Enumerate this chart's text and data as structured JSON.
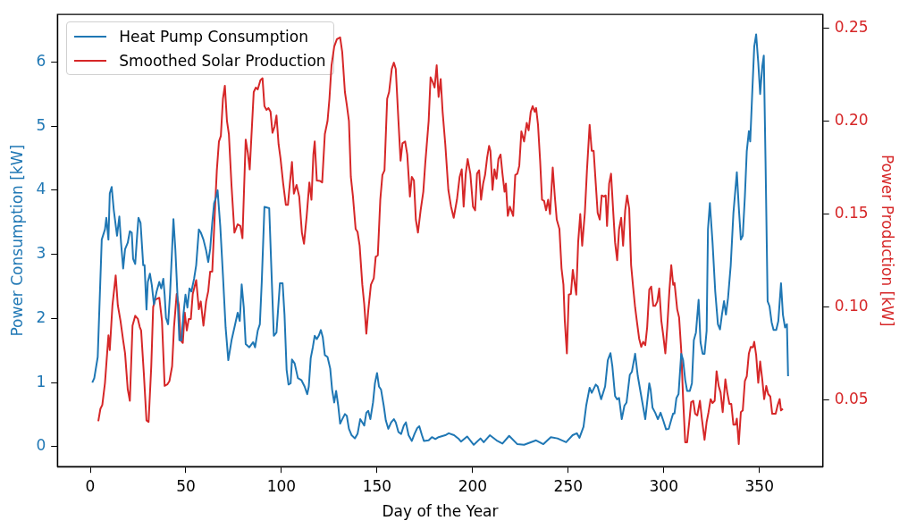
{
  "chart_data": {
    "type": "line",
    "xlabel": "Day of the Year",
    "ylabel": "Power Consumption [kW]",
    "y2label": "Power Production [kW]",
    "xlim": [
      -17.2,
      383.2
    ],
    "xticks": [
      0,
      50,
      100,
      150,
      200,
      250,
      300,
      350
    ],
    "ylim": [
      -0.31,
      6.74
    ],
    "yticks": [
      0,
      1,
      2,
      3,
      4,
      5,
      6
    ],
    "y2lim": [
      0.0142,
      0.2573
    ],
    "y2ticks": [
      0.05,
      {
        "value": 0.1,
        "label": "0.10"
      },
      0.15,
      {
        "value": 0.2,
        "label": "0.20"
      },
      0.25
    ],
    "grid": false,
    "legend": "top left",
    "series": [
      {
        "name": "Heat Pump Consumption",
        "color": "#1f77b4",
        "x": [
          1.05,
          2.1,
          3.9,
          6.0,
          7.7,
          8.4,
          9.5,
          10.2,
          11.2,
          12.3,
          14.0,
          15.2,
          16.1,
          17.2,
          18.2,
          19.6,
          20.7,
          21.7,
          22.4,
          23.5,
          24.5,
          25.2,
          26.3,
          27.7,
          28.4,
          29.4,
          30.1,
          31.2,
          32.2,
          33.3,
          34.7,
          36.1,
          37.1,
          38.2,
          38.9,
          39.6,
          40.7,
          41.7,
          42.8,
          43.5,
          44.5,
          45.6,
          46.6,
          47.7,
          48.7,
          49.8,
          50.8,
          51.9,
          52.9,
          54.3,
          55.4,
          56.8,
          57.8,
          59.2,
          60.6,
          61.7,
          62.7,
          63.8,
          64.8,
          65.9,
          66.6,
          68.0,
          69.4,
          70.8,
          72.2,
          73.9,
          75.4,
          77.1,
          78.2,
          79.2,
          80.3,
          81.3,
          83.2,
          85.2,
          86.2,
          87.6,
          88.7,
          89.7,
          91.1,
          93.6,
          94.6,
          96.0,
          97.4,
          99.2,
          100.6,
          101.6,
          102.7,
          103.7,
          104.8,
          105.5,
          106.9,
          108.6,
          110.4,
          112.1,
          113.5,
          114.3,
          115.3,
          116.4,
          117.4,
          118.5,
          119.5,
          120.6,
          121.6,
          122.7,
          124.1,
          125.5,
          126.5,
          127.6,
          128.6,
          129.7,
          130.7,
          131.8,
          133.2,
          134.2,
          135.3,
          136.7,
          138.4,
          139.8,
          141.2,
          142.3,
          143.3,
          144.4,
          145.4,
          146.5,
          147.9,
          148.9,
          150.0,
          151.0,
          152.1,
          153.5,
          154.6,
          155.9,
          157.4,
          158.8,
          159.8,
          161.2,
          162.6,
          164.0,
          165.1,
          166.5,
          168.2,
          169.6,
          171.0,
          172.1,
          173.5,
          174.5,
          177.0,
          178.7,
          180.5,
          182.2,
          185.7,
          187.5,
          190.3,
          192.8,
          193.9,
          197.1,
          200.6,
          204.1,
          205.8,
          209.0,
          212.5,
          215.6,
          219.1,
          223.4,
          226.9,
          233.2,
          237.0,
          240.9,
          244.4,
          248.9,
          252.3,
          254.5,
          255.9,
          258.0,
          259.4,
          261.2,
          262.3,
          264.4,
          265.4,
          267.2,
          269.3,
          270.7,
          272.1,
          273.1,
          274.5,
          275.6,
          276.6,
          278.0,
          279.4,
          280.5,
          282.2,
          283.3,
          285.0,
          286.4,
          288.2,
          290.3,
          292.4,
          293.1,
          294.1,
          295.5,
          296.9,
          298.3,
          299.7,
          301.2,
          302.6,
          304.0,
          304.9,
          305.6,
          306.6,
          307.7,
          309.1,
          310.1,
          311.2,
          312.2,
          313.6,
          314.7,
          315.7,
          316.8,
          318.2,
          319.2,
          320.3,
          321.3,
          322.4,
          323.1,
          324.1,
          325.5,
          326.9,
          328.3,
          329.4,
          330.4,
          331.5,
          332.5,
          333.6,
          335.0,
          336.4,
          338.2,
          339.2,
          340.3,
          341.3,
          342.4,
          343.4,
          344.5,
          345.2,
          346.2,
          347.3,
          348.3,
          349.4,
          350.4,
          351.5,
          352.3,
          353.2,
          354.3,
          355.3,
          356.4,
          357.4,
          358.8,
          359.9,
          361.3,
          362.3,
          363.4,
          364.4,
          365
        ],
        "values": [
          1.0,
          1.07,
          1.4,
          3.23,
          3.39,
          3.57,
          3.23,
          3.95,
          4.05,
          3.69,
          3.29,
          3.59,
          3.18,
          2.78,
          3.08,
          3.18,
          3.36,
          3.34,
          2.93,
          2.85,
          3.29,
          3.57,
          3.49,
          2.83,
          2.83,
          2.14,
          2.57,
          2.7,
          2.52,
          2.22,
          2.42,
          2.57,
          2.47,
          2.62,
          2.37,
          2.01,
          1.91,
          2.37,
          3.08,
          3.55,
          3.08,
          2.37,
          1.66,
          1.66,
          2.06,
          2.37,
          2.17,
          2.47,
          2.42,
          2.62,
          2.83,
          3.39,
          3.34,
          3.23,
          3.06,
          2.88,
          3.08,
          3.49,
          3.8,
          3.9,
          4.0,
          3.44,
          2.67,
          1.86,
          1.35,
          1.66,
          1.86,
          2.09,
          1.96,
          2.53,
          2.17,
          1.6,
          1.55,
          1.63,
          1.55,
          1.81,
          1.91,
          2.57,
          3.74,
          3.72,
          2.88,
          1.73,
          1.78,
          2.55,
          2.55,
          2.06,
          1.2,
          0.97,
          0.99,
          1.36,
          1.3,
          1.07,
          1.04,
          0.94,
          0.82,
          0.94,
          1.38,
          1.55,
          1.73,
          1.68,
          1.73,
          1.82,
          1.71,
          1.43,
          1.4,
          1.22,
          0.89,
          0.69,
          0.87,
          0.64,
          0.36,
          0.43,
          0.51,
          0.48,
          0.28,
          0.18,
          0.13,
          0.2,
          0.43,
          0.38,
          0.33,
          0.53,
          0.56,
          0.43,
          0.69,
          0.99,
          1.15,
          0.94,
          0.89,
          0.64,
          0.41,
          0.28,
          0.38,
          0.43,
          0.38,
          0.23,
          0.2,
          0.33,
          0.38,
          0.18,
          0.09,
          0.2,
          0.29,
          0.32,
          0.18,
          0.09,
          0.1,
          0.15,
          0.12,
          0.15,
          0.18,
          0.21,
          0.18,
          0.12,
          0.08,
          0.16,
          0.03,
          0.13,
          0.07,
          0.18,
          0.1,
          0.05,
          0.17,
          0.04,
          0.03,
          0.1,
          0.04,
          0.15,
          0.13,
          0.07,
          0.18,
          0.21,
          0.14,
          0.31,
          0.64,
          0.92,
          0.84,
          0.97,
          0.94,
          0.74,
          0.94,
          1.35,
          1.46,
          1.25,
          0.79,
          0.74,
          0.76,
          0.43,
          0.64,
          0.69,
          1.12,
          1.17,
          1.45,
          1.1,
          0.79,
          0.43,
          0.99,
          0.89,
          0.61,
          0.53,
          0.43,
          0.53,
          0.41,
          0.27,
          0.28,
          0.43,
          0.52,
          0.52,
          0.76,
          0.82,
          1.45,
          1.35,
          1.04,
          0.87,
          0.87,
          0.99,
          1.66,
          1.78,
          2.29,
          1.63,
          1.45,
          1.45,
          1.81,
          3.39,
          3.8,
          3.18,
          2.42,
          1.91,
          1.83,
          2.06,
          2.27,
          2.06,
          2.32,
          2.83,
          3.64,
          4.28,
          3.74,
          3.23,
          3.29,
          3.9,
          4.61,
          4.92,
          4.76,
          5.48,
          6.24,
          6.43,
          5.99,
          5.5,
          5.93,
          6.1,
          4.46,
          2.27,
          2.19,
          1.94,
          1.82,
          1.82,
          1.96,
          2.55,
          2.06,
          1.86,
          1.91,
          1.1
        ]
      },
      {
        "name": "Smoothed Solar Production",
        "color": "#d62728",
        "axis": "y2",
        "x": [
          4.2,
          5.3,
          6.3,
          7.7,
          9.5,
          10.2,
          11.6,
          13.3,
          14.4,
          15.8,
          17.2,
          18.2,
          19.6,
          20.7,
          22.1,
          23.5,
          24.9,
          25.9,
          26.6,
          28.0,
          29.4,
          30.5,
          31.9,
          32.9,
          34.0,
          36.1,
          37.5,
          38.9,
          40.3,
          41.4,
          42.8,
          43.8,
          45.2,
          46.3,
          47.3,
          48.4,
          49.4,
          50.5,
          51.5,
          52.6,
          53.6,
          55.4,
          56.8,
          57.8,
          59.2,
          60.6,
          61.7,
          62.7,
          63.8,
          65.2,
          66.2,
          67.3,
          68.3,
          69.4,
          70.4,
          71.5,
          72.5,
          73.9,
          75.4,
          77.1,
          78.5,
          79.6,
          81.3,
          82.4,
          83.4,
          85.5,
          86.6,
          87.6,
          89.0,
          90.1,
          91.1,
          92.2,
          93.2,
          94.3,
          95.3,
          96.4,
          97.4,
          98.5,
          99.5,
          100.9,
          102.3,
          103.4,
          104.4,
          105.5,
          106.5,
          107.9,
          109.3,
          110.7,
          111.8,
          113.2,
          114.6,
          115.7,
          116.7,
          117.4,
          118.5,
          120.2,
          121.3,
          122.7,
          124.1,
          125.1,
          126.2,
          127.6,
          129.0,
          130.7,
          131.8,
          133.2,
          134.2,
          135.3,
          136.3,
          137.4,
          138.8,
          139.8,
          140.9,
          142.3,
          143.3,
          144.4,
          145.4,
          146.8,
          148.3,
          149.3,
          150.4,
          151.7,
          152.8,
          153.9,
          155.3,
          156.3,
          157.7,
          158.8,
          159.8,
          161.2,
          162.3,
          163.3,
          164.7,
          165.8,
          167.2,
          168.2,
          169.3,
          170.3,
          171.4,
          172.8,
          174.2,
          175.2,
          177.0,
          178.0,
          179.1,
          180.1,
          181.2,
          182.2,
          183.3,
          184.3,
          185.7,
          187.3,
          188.7,
          190.1,
          191.8,
          193.2,
          194.3,
          195.3,
          196.4,
          197.4,
          198.8,
          200.2,
          201.3,
          202.3,
          203.4,
          204.4,
          205.5,
          206.5,
          207.6,
          208.6,
          209.3,
          210.4,
          211.4,
          212.5,
          213.5,
          214.6,
          215.6,
          216.7,
          217.4,
          218.4,
          219.5,
          221.2,
          222.3,
          223.4,
          224.4,
          225.5,
          226.9,
          228.3,
          229.3,
          230.4,
          231.4,
          232.5,
          233.2,
          234.2,
          235.3,
          236.3,
          237.4,
          238.4,
          239.5,
          240.5,
          241.9,
          243.0,
          244.0,
          245.4,
          246.5,
          247.5,
          248.2,
          249.3,
          250.3,
          251.4,
          252.4,
          254.2,
          255.2,
          256.3,
          257.3,
          258.7,
          259.8,
          261.2,
          262.3,
          263.3,
          264.4,
          265.4,
          266.5,
          267.5,
          268.6,
          269.6,
          270.3,
          271.4,
          272.4,
          273.5,
          274.5,
          275.6,
          276.6,
          277.7,
          278.7,
          279.8,
          280.8,
          281.9,
          282.9,
          284.0,
          285.0,
          286.1,
          287.1,
          288.2,
          289.2,
          290.3,
          291.3,
          292.4,
          293.4,
          294.5,
          295.5,
          296.6,
          297.6,
          298.7,
          299.7,
          300.8,
          301.8,
          302.9,
          303.9,
          304.9,
          305.6,
          307.0,
          308.0,
          309.1,
          310.1,
          311.2,
          312.2,
          313.3,
          314.3,
          315.4,
          316.4,
          317.5,
          318.9,
          319.9,
          321.3,
          322.4,
          323.4,
          324.5,
          325.5,
          326.6,
          327.6,
          328.7,
          329.7,
          330.8,
          332.2,
          333.2,
          334.3,
          335.3,
          336.4,
          337.5,
          338.2,
          339.2,
          340.3,
          341.3,
          342.4,
          343.4,
          344.5,
          345.5,
          346.6,
          347.3,
          348.3,
          349.4,
          350.4,
          351.5,
          352.5,
          353.6,
          354.6,
          355.7,
          356.7,
          358.5,
          359.5,
          360.6,
          361.3,
          362.3
        ],
        "values": [
          0.0386,
          0.0453,
          0.0474,
          0.0593,
          0.0848,
          0.0769,
          0.101,
          0.117,
          0.101,
          0.0927,
          0.0821,
          0.0751,
          0.0558,
          0.0496,
          0.09,
          0.0953,
          0.0936,
          0.0892,
          0.0874,
          0.0646,
          0.0391,
          0.0382,
          0.0681,
          0.1,
          0.104,
          0.105,
          0.0927,
          0.0576,
          0.0584,
          0.0602,
          0.0681,
          0.0892,
          0.107,
          0.101,
          0.0821,
          0.0807,
          0.0971,
          0.0874,
          0.0936,
          0.0936,
          0.107,
          0.1145,
          0.0988,
          0.103,
          0.09,
          0.103,
          0.1085,
          0.119,
          0.119,
          0.152,
          0.1735,
          0.189,
          0.192,
          0.212,
          0.219,
          0.2,
          0.193,
          0.165,
          0.14,
          0.1445,
          0.1436,
          0.137,
          0.19,
          0.183,
          0.174,
          0.2156,
          0.218,
          0.217,
          0.222,
          0.223,
          0.208,
          0.206,
          0.207,
          0.205,
          0.1937,
          0.197,
          0.203,
          0.1875,
          0.18,
          0.1664,
          0.155,
          0.155,
          0.1664,
          0.178,
          0.161,
          0.1656,
          0.1594,
          0.14,
          0.134,
          0.149,
          0.167,
          0.1577,
          0.182,
          0.189,
          0.168,
          0.1678,
          0.167,
          0.193,
          0.2,
          0.212,
          0.23,
          0.24,
          0.244,
          0.245,
          0.237,
          0.2156,
          0.2086,
          0.2,
          0.17,
          0.1594,
          0.142,
          0.1404,
          0.133,
          0.112,
          0.1015,
          0.0857,
          0.098,
          0.112,
          0.1155,
          0.127,
          0.1278,
          0.1577,
          0.171,
          0.1735,
          0.212,
          0.2156,
          0.228,
          0.2314,
          0.228,
          0.2,
          0.1787,
          0.188,
          0.189,
          0.182,
          0.1594,
          0.17,
          0.168,
          0.147,
          0.14,
          0.152,
          0.162,
          0.177,
          0.2,
          0.2235,
          0.221,
          0.218,
          0.23,
          0.213,
          0.2226,
          0.205,
          0.1875,
          0.163,
          0.154,
          0.148,
          0.1577,
          0.17,
          0.174,
          0.154,
          0.1717,
          0.1796,
          0.1717,
          0.154,
          0.152,
          0.1717,
          0.1735,
          0.1577,
          0.1664,
          0.171,
          0.1805,
          0.1866,
          0.184,
          0.163,
          0.174,
          0.169,
          0.1796,
          0.182,
          0.1717,
          0.162,
          0.1664,
          0.149,
          0.154,
          0.149,
          0.171,
          0.1717,
          0.176,
          0.1945,
          0.189,
          0.199,
          0.195,
          0.205,
          0.208,
          0.205,
          0.207,
          0.198,
          0.1787,
          0.1577,
          0.157,
          0.152,
          0.1577,
          0.15,
          0.175,
          0.1594,
          0.147,
          0.142,
          0.1208,
          0.112,
          0.0927,
          0.0751,
          0.1067,
          0.107,
          0.12,
          0.1067,
          0.1348,
          0.15,
          0.133,
          0.1506,
          0.1735,
          0.198,
          0.184,
          0.184,
          0.1664,
          0.1506,
          0.147,
          0.16,
          0.1594,
          0.16,
          0.1436,
          0.1664,
          0.1717,
          0.152,
          0.1348,
          0.1252,
          0.1418,
          0.148,
          0.133,
          0.152,
          0.16,
          0.153,
          0.1225,
          0.1102,
          0.0997,
          0.0909,
          0.083,
          0.0786,
          0.0813,
          0.0795,
          0.0892,
          0.1094,
          0.111,
          0.1006,
          0.1006,
          0.103,
          0.11,
          0.0927,
          0.0848,
          0.0751,
          0.0892,
          0.1085,
          0.1225,
          0.112,
          0.113,
          0.0988,
          0.0944,
          0.0769,
          0.0505,
          0.0273,
          0.0273,
          0.0382,
          0.0488,
          0.0496,
          0.0426,
          0.0417,
          0.0496,
          0.04,
          0.0286,
          0.0382,
          0.0435,
          0.0505,
          0.0484,
          0.0496,
          0.0655,
          0.0576,
          0.054,
          0.0435,
          0.0611,
          0.054,
          0.0479,
          0.0479,
          0.0368,
          0.0368,
          0.04,
          0.0263,
          0.0435,
          0.0444,
          0.0602,
          0.0628,
          0.0751,
          0.0786,
          0.0783,
          0.0813,
          0.0742,
          0.0593,
          0.0707,
          0.0611,
          0.0505,
          0.0576,
          0.0532,
          0.0519,
          0.0426,
          0.0426,
          0.047,
          0.0505,
          0.0444,
          0.0453
        ]
      }
    ]
  }
}
